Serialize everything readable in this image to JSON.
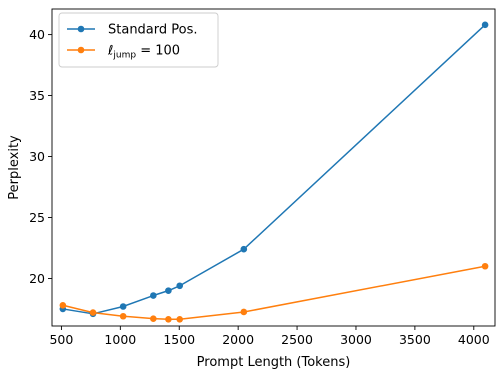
{
  "chart_data": {
    "type": "line",
    "xlabel": "Prompt Length (Tokens)",
    "ylabel": "Perplexity",
    "xlim": [
      420,
      4180
    ],
    "ylim": [
      16.1,
      42.1
    ],
    "xticks": [
      500,
      1000,
      1500,
      2000,
      2500,
      3000,
      3500,
      4000
    ],
    "yticks": [
      20,
      25,
      30,
      35,
      40
    ],
    "grid": false,
    "legend_position": "top-left",
    "series": [
      {
        "name": "Standard Pos.",
        "color": "#1f77b4",
        "x": [
          512,
          768,
          1024,
          1280,
          1408,
          1504,
          2048,
          4096
        ],
        "y": [
          17.5,
          17.1,
          17.7,
          18.6,
          19.0,
          19.4,
          22.4,
          40.8
        ]
      },
      {
        "name_parts": {
          "main": "ℓ",
          "sub": "jump",
          "rest": " = 100"
        },
        "color": "#ff7f0e",
        "x": [
          512,
          768,
          1024,
          1280,
          1408,
          1504,
          2048,
          4096
        ],
        "y": [
          17.8,
          17.2,
          16.9,
          16.7,
          16.65,
          16.65,
          17.25,
          21.0
        ]
      }
    ]
  }
}
